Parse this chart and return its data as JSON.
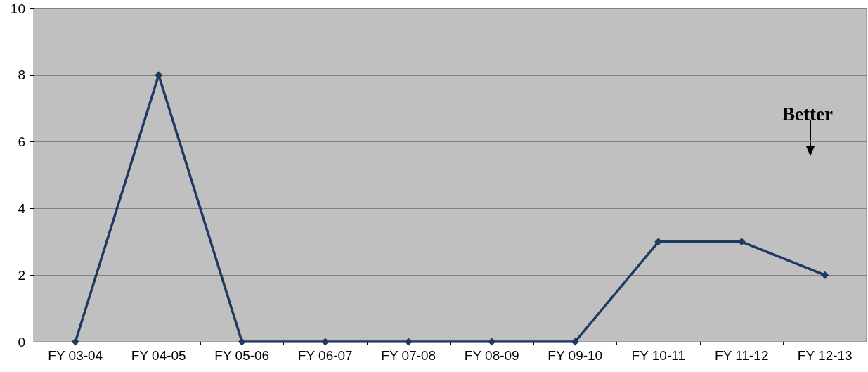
{
  "chart_data": {
    "type": "line",
    "categories": [
      "FY 03-04",
      "FY 04-05",
      "FY 05-06",
      "FY 06-07",
      "FY 07-08",
      "FY 08-09",
      "FY 09-10",
      "FY 10-11",
      "FY 11-12",
      "FY 12-13"
    ],
    "series": [
      {
        "color": "#1f3a60",
        "values": [
          0,
          8,
          0,
          0,
          0,
          0,
          0,
          3,
          3,
          2
        ]
      }
    ],
    "ylim": [
      0,
      10
    ],
    "yticks": [
      0,
      2,
      4,
      6,
      8,
      10
    ],
    "grid": "y",
    "marker": "diamond",
    "line_style": "solid",
    "annotations": [
      "Better"
    ]
  }
}
